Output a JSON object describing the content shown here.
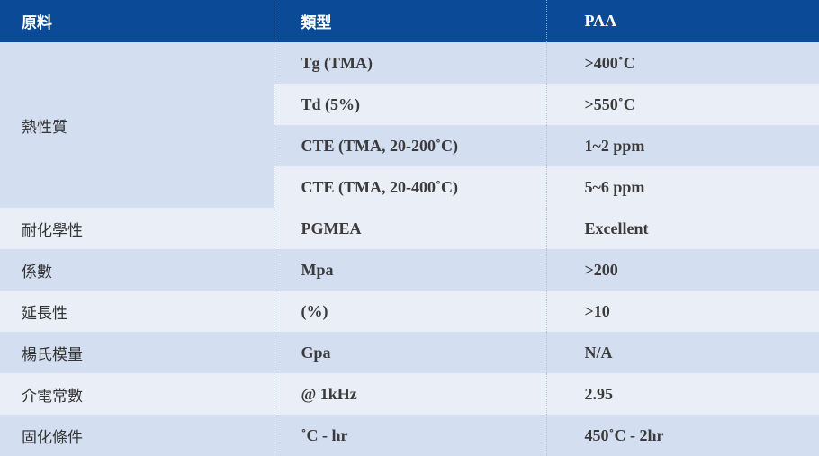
{
  "header": {
    "category": "原料",
    "type": "類型",
    "value": "PAA"
  },
  "thermal": {
    "category": "熱性質",
    "rows": [
      {
        "type": "Tg (TMA)",
        "value": ">400˚C"
      },
      {
        "type": "Td (5%)",
        "value": ">550˚C"
      },
      {
        "type": "CTE (TMA, 20-200˚C)",
        "value": "1~2 ppm"
      },
      {
        "type": "CTE (TMA, 20-400˚C)",
        "value": "5~6 ppm"
      }
    ]
  },
  "rows": [
    {
      "category": "耐化學性",
      "type": "PGMEA",
      "value": "Excellent"
    },
    {
      "category": "係數",
      "type": "Mpa",
      "value": ">200"
    },
    {
      "category": "延長性",
      "type": "(%)",
      "value": ">10"
    },
    {
      "category": "楊氏模量",
      "type": "Gpa",
      "value": "N/A"
    },
    {
      "category": "介電常數",
      "type": "@ 1kHz",
      "value": "2.95"
    },
    {
      "category": "固化條件",
      "type": "˚C - hr",
      "value": "450˚C - 2hr"
    }
  ]
}
